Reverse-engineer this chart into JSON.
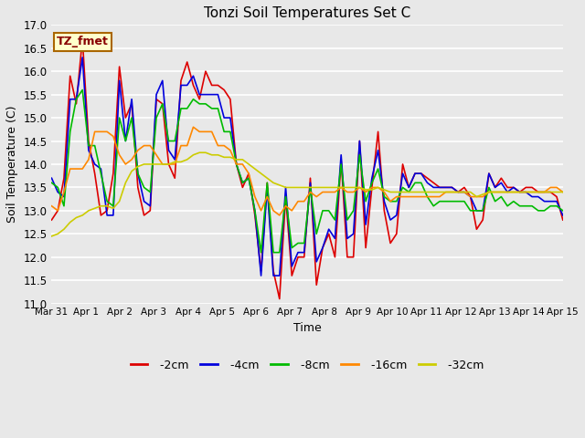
{
  "title": "Tonzi Soil Temperatures Set C",
  "xlabel": "Time",
  "ylabel": "Soil Temperature (C)",
  "ylim": [
    11.0,
    17.0
  ],
  "yticks": [
    11.0,
    11.5,
    12.0,
    12.5,
    13.0,
    13.5,
    14.0,
    14.5,
    15.0,
    15.5,
    16.0,
    16.5,
    17.0
  ],
  "annotation": "TZ_fmet",
  "annotation_bg": "#ffffcc",
  "annotation_border": "#aa6600",
  "annotation_text_color": "#880000",
  "bg_color": "#e8e8e8",
  "grid_color": "white",
  "colors": {
    "-2cm": "#dd0000",
    "-4cm": "#0000dd",
    "-8cm": "#00bb00",
    "-16cm": "#ff8800",
    "-32cm": "#cccc00"
  },
  "line_width": 1.2,
  "xtick_labels": [
    "Mar 31",
    "Apr 1",
    "Apr 2",
    "Apr 3",
    "Apr 4",
    "Apr 5",
    "Apr 6",
    "Apr 7",
    "Apr 8",
    "Apr 9",
    "Apr 10",
    "Apr 11",
    "Apr 12",
    "Apr 13",
    "Apr 14",
    "Apr 15"
  ],
  "t_2cm": [
    12.8,
    13.0,
    13.7,
    15.9,
    15.3,
    16.7,
    14.5,
    13.8,
    12.9,
    13.0,
    13.8,
    16.1,
    15.0,
    15.3,
    13.5,
    12.9,
    13.0,
    15.4,
    15.3,
    14.0,
    13.7,
    15.8,
    16.2,
    15.7,
    15.4,
    16.0,
    15.7,
    15.7,
    15.6,
    15.4,
    14.0,
    13.5,
    13.8,
    12.9,
    11.7,
    13.6,
    11.7,
    11.1,
    13.3,
    11.6,
    12.0,
    12.0,
    13.7,
    11.4,
    12.2,
    12.5,
    12.0,
    14.1,
    12.0,
    12.0,
    14.5,
    12.2,
    13.5,
    14.7,
    13.0,
    12.3,
    12.5,
    14.0,
    13.5,
    13.8,
    13.8,
    13.7,
    13.6,
    13.5,
    13.5,
    13.5,
    13.4,
    13.5,
    13.3,
    12.6,
    12.8,
    13.8,
    13.5,
    13.7,
    13.5,
    13.5,
    13.4,
    13.5,
    13.5,
    13.4,
    13.4,
    13.4,
    13.3,
    12.8
  ],
  "t_4cm": [
    13.7,
    13.4,
    13.3,
    15.4,
    15.4,
    16.3,
    14.3,
    14.0,
    13.9,
    12.9,
    12.9,
    15.8,
    14.5,
    15.4,
    13.8,
    13.2,
    13.1,
    15.5,
    15.8,
    14.3,
    14.1,
    15.7,
    15.7,
    15.9,
    15.5,
    15.5,
    15.5,
    15.5,
    15.0,
    15.0,
    14.0,
    13.6,
    13.7,
    13.0,
    11.6,
    13.5,
    11.6,
    11.6,
    13.5,
    11.8,
    12.1,
    12.1,
    13.6,
    11.9,
    12.2,
    12.6,
    12.4,
    14.2,
    12.4,
    12.5,
    14.5,
    12.7,
    13.7,
    14.3,
    13.2,
    12.8,
    12.9,
    13.8,
    13.5,
    13.8,
    13.8,
    13.6,
    13.5,
    13.5,
    13.5,
    13.5,
    13.4,
    13.4,
    13.3,
    13.0,
    13.0,
    13.8,
    13.5,
    13.6,
    13.4,
    13.5,
    13.4,
    13.4,
    13.3,
    13.3,
    13.2,
    13.2,
    13.2,
    12.9
  ],
  "t_8cm": [
    13.6,
    13.5,
    13.1,
    14.7,
    15.4,
    15.6,
    14.4,
    14.4,
    13.8,
    13.2,
    13.1,
    15.0,
    14.5,
    15.0,
    13.8,
    13.5,
    13.4,
    15.0,
    15.3,
    14.5,
    14.5,
    15.2,
    15.2,
    15.4,
    15.3,
    15.3,
    15.2,
    15.2,
    14.7,
    14.7,
    14.0,
    13.6,
    13.7,
    13.0,
    12.1,
    13.6,
    12.1,
    12.1,
    13.3,
    12.2,
    12.3,
    12.3,
    13.5,
    12.5,
    13.0,
    13.0,
    12.8,
    14.0,
    12.8,
    13.0,
    14.2,
    13.2,
    13.6,
    13.9,
    13.3,
    13.2,
    13.2,
    13.5,
    13.4,
    13.6,
    13.6,
    13.3,
    13.1,
    13.2,
    13.2,
    13.2,
    13.2,
    13.2,
    13.0,
    13.0,
    13.0,
    13.5,
    13.2,
    13.3,
    13.1,
    13.2,
    13.1,
    13.1,
    13.1,
    13.0,
    13.0,
    13.1,
    13.1,
    13.0
  ],
  "t_16cm": [
    13.1,
    13.0,
    13.4,
    13.9,
    13.9,
    13.9,
    14.1,
    14.7,
    14.7,
    14.7,
    14.6,
    14.2,
    14.0,
    14.1,
    14.3,
    14.4,
    14.4,
    14.2,
    14.0,
    14.0,
    14.0,
    14.4,
    14.4,
    14.8,
    14.7,
    14.7,
    14.7,
    14.4,
    14.4,
    14.3,
    14.0,
    14.0,
    13.8,
    13.3,
    13.0,
    13.3,
    13.0,
    12.9,
    13.1,
    13.0,
    13.2,
    13.2,
    13.4,
    13.3,
    13.4,
    13.4,
    13.4,
    13.5,
    13.4,
    13.4,
    13.5,
    13.4,
    13.5,
    13.5,
    13.4,
    13.2,
    13.3,
    13.3,
    13.3,
    13.3,
    13.3,
    13.3,
    13.3,
    13.3,
    13.4,
    13.4,
    13.4,
    13.4,
    13.3,
    13.3,
    13.3,
    13.4,
    13.4,
    13.4,
    13.4,
    13.4,
    13.4,
    13.4,
    13.4,
    13.4,
    13.4,
    13.5,
    13.5,
    13.4
  ],
  "t_32cm": [
    12.45,
    12.5,
    12.6,
    12.75,
    12.85,
    12.9,
    13.0,
    13.05,
    13.1,
    13.1,
    13.05,
    13.2,
    13.6,
    13.85,
    13.95,
    14.0,
    14.0,
    14.0,
    14.0,
    14.0,
    14.05,
    14.05,
    14.1,
    14.2,
    14.25,
    14.25,
    14.2,
    14.2,
    14.15,
    14.15,
    14.1,
    14.1,
    14.0,
    13.9,
    13.8,
    13.7,
    13.6,
    13.55,
    13.5,
    13.5,
    13.5,
    13.5,
    13.5,
    13.5,
    13.5,
    13.5,
    13.5,
    13.5,
    13.5,
    13.5,
    13.5,
    13.45,
    13.45,
    13.5,
    13.45,
    13.4,
    13.4,
    13.4,
    13.4,
    13.4,
    13.4,
    13.4,
    13.4,
    13.4,
    13.4,
    13.4,
    13.4,
    13.4,
    13.4,
    13.3,
    13.35,
    13.4,
    13.4,
    13.4,
    13.4,
    13.4,
    13.4,
    13.4,
    13.4,
    13.4,
    13.4,
    13.4,
    13.4,
    13.4
  ]
}
